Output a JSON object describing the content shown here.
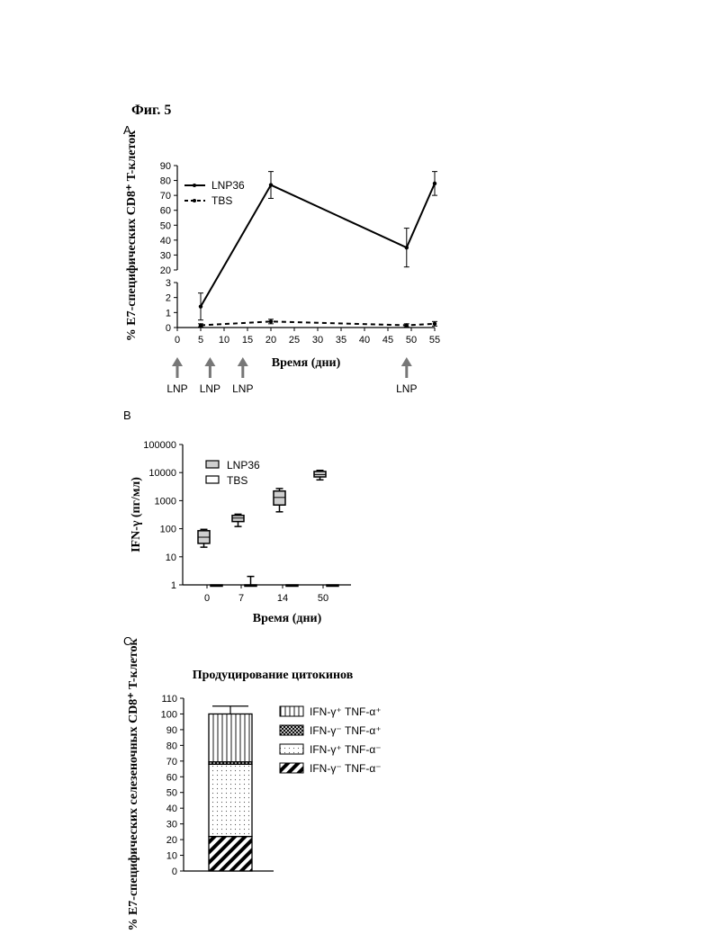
{
  "figure_title": "Фиг. 5",
  "chart_data": [
    {
      "panel": "A",
      "type": "line",
      "xlabel": "Время (дни)",
      "ylabel": "% E7-специфических CD8⁺ T-клеток",
      "xlim": [
        0,
        55
      ],
      "x_ticks": [
        0,
        5,
        10,
        15,
        20,
        25,
        30,
        35,
        40,
        45,
        50,
        55
      ],
      "y_break": true,
      "ylim_lower": [
        0,
        3
      ],
      "ylim_upper": [
        20,
        90
      ],
      "y_ticks_lower": [
        0,
        1,
        2,
        3
      ],
      "y_ticks_upper": [
        20,
        30,
        40,
        50,
        60,
        70,
        80,
        90
      ],
      "legend": "top-left",
      "series": [
        {
          "name": "LNP36",
          "style": "solid",
          "x": [
            5,
            20,
            49,
            55
          ],
          "y": [
            1.4,
            77,
            35,
            78
          ],
          "err": [
            0.9,
            9,
            13,
            8
          ]
        },
        {
          "name": "TBS",
          "style": "dashed",
          "x": [
            5,
            20,
            49,
            55
          ],
          "y": [
            0.15,
            0.4,
            0.15,
            0.25
          ],
          "err": [
            0.1,
            0.15,
            0.1,
            0.15
          ]
        }
      ],
      "annotations": [
        {
          "x": 0,
          "text": "LNP"
        },
        {
          "x": 7,
          "text": "LNP"
        },
        {
          "x": 14,
          "text": "LNP"
        },
        {
          "x": 49,
          "text": "LNP"
        }
      ]
    },
    {
      "panel": "B",
      "type": "box",
      "xlabel": "Время (дни)",
      "ylabel": "IFN-γ (пг/мл)",
      "yscale": "log",
      "ylim": [
        1,
        100000
      ],
      "y_ticks": [
        "1",
        "10",
        "100",
        "1000",
        "10000",
        "100000"
      ],
      "categories": [
        "0",
        "7",
        "14",
        "50"
      ],
      "legend": "top-left",
      "series": [
        {
          "name": "LNP36",
          "boxes": [
            {
              "min": 22,
              "q1": 30,
              "median": 50,
              "q3": 85,
              "max": 95
            },
            {
              "min": 120,
              "q1": 180,
              "median": 240,
              "q3": 300,
              "max": 330
            },
            {
              "min": 400,
              "q1": 700,
              "median": 1300,
              "q3": 2200,
              "max": 2700
            },
            {
              "min": 5500,
              "q1": 7000,
              "median": 8500,
              "q3": 11000,
              "max": 12000
            }
          ]
        },
        {
          "name": "TBS",
          "boxes": [
            {
              "min": 1,
              "q1": 1,
              "median": 1,
              "q3": 1,
              "max": 1
            },
            {
              "min": 1,
              "q1": 1,
              "median": 1,
              "q3": 1,
              "max": 2
            },
            {
              "min": 1,
              "q1": 1,
              "median": 1,
              "q3": 1,
              "max": 1
            },
            {
              "min": 1,
              "q1": 1,
              "median": 1,
              "q3": 1,
              "max": 1
            }
          ]
        }
      ]
    },
    {
      "panel": "C",
      "type": "bar",
      "stacked": true,
      "title": "Продуцирование цитокинов",
      "ylabel": "% E7-специфических селезеночных CD8⁺ T-клеток",
      "ylim": [
        0,
        110
      ],
      "y_ticks": [
        0,
        10,
        20,
        30,
        40,
        50,
        60,
        70,
        80,
        90,
        100,
        110
      ],
      "legend": "right",
      "series": [
        {
          "name": "IFN-γ⁻ TNF-α⁻",
          "pattern": "diagonal",
          "value": 22,
          "err": 4
        },
        {
          "name": "IFN-γ⁺ TNF-α⁻",
          "pattern": "dots",
          "value": 46
        },
        {
          "name": "IFN-γ⁻ TNF-α⁺",
          "pattern": "crosshatch",
          "value": 1.5
        },
        {
          "name": "IFN-γ⁺ TNF-α⁺",
          "pattern": "vertical",
          "value": 30.5,
          "err": 5
        }
      ],
      "legend_order": [
        "IFN-γ⁺ TNF-α⁺",
        "IFN-γ⁻ TNF-α⁺",
        "IFN-γ⁺ TNF-α⁻",
        "IFN-γ⁻ TNF-α⁻"
      ]
    }
  ]
}
